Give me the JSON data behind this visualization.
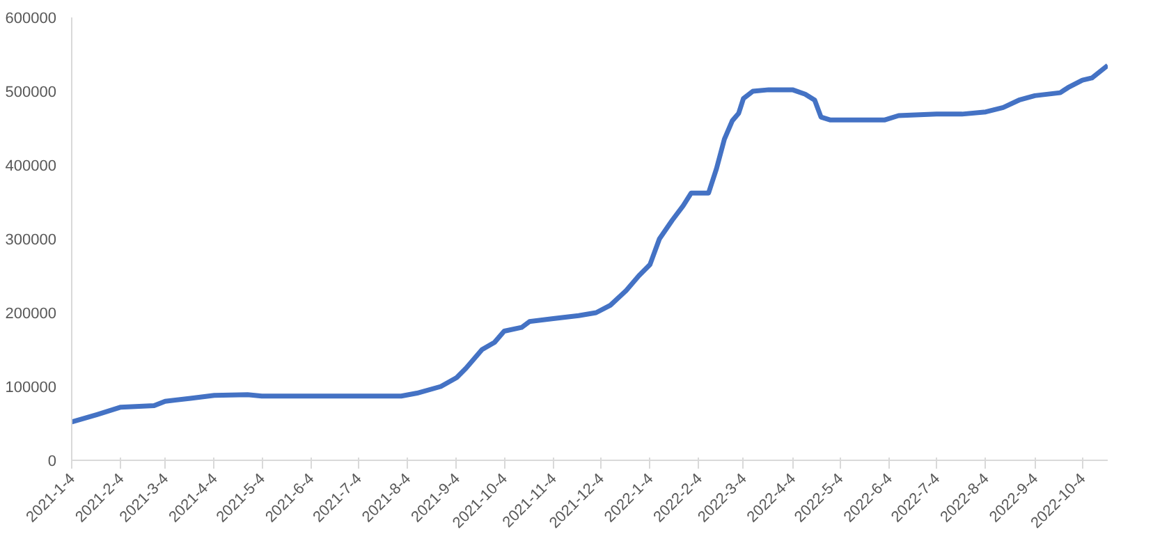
{
  "chart_data": {
    "type": "line",
    "grid": false,
    "marker": "none",
    "line_style": "solid",
    "x": [
      "2021-01-04",
      "2021-01-20",
      "2021-02-04",
      "2021-02-25",
      "2021-03-04",
      "2021-03-20",
      "2021-04-04",
      "2021-04-25",
      "2021-05-04",
      "2021-07-31",
      "2021-08-10",
      "2021-08-25",
      "2021-09-04",
      "2021-09-10",
      "2021-09-20",
      "2021-09-28",
      "2021-10-04",
      "2021-10-15",
      "2021-10-20",
      "2021-11-04",
      "2021-11-20",
      "2021-12-01",
      "2021-12-10",
      "2021-12-20",
      "2021-12-28",
      "2022-01-04",
      "2022-01-10",
      "2022-01-18",
      "2022-01-25",
      "2022-01-30",
      "2022-02-10",
      "2022-02-15",
      "2022-02-20",
      "2022-02-25",
      "2022-03-01",
      "2022-03-04",
      "2022-03-10",
      "2022-03-20",
      "2022-04-04",
      "2022-04-12",
      "2022-04-18",
      "2022-04-22",
      "2022-04-28",
      "2022-06-01",
      "2022-06-10",
      "2022-07-04",
      "2022-07-20",
      "2022-08-04",
      "2022-08-15",
      "2022-08-25",
      "2022-09-04",
      "2022-09-20",
      "2022-09-25",
      "2022-10-04",
      "2022-10-10",
      "2022-10-20"
    ],
    "series": [
      {
        "color": "#4472c4",
        "values": [
          52000,
          62000,
          72000,
          74000,
          80000,
          84000,
          88000,
          89000,
          87000,
          87000,
          91000,
          100000,
          112000,
          125000,
          150000,
          160000,
          175000,
          180000,
          188000,
          192000,
          196000,
          200000,
          210000,
          230000,
          250000,
          265000,
          300000,
          325000,
          345000,
          362000,
          362000,
          395000,
          435000,
          460000,
          470000,
          490000,
          500000,
          502000,
          502000,
          496000,
          488000,
          465000,
          461000,
          461000,
          467000,
          469000,
          469000,
          472000,
          478000,
          488000,
          494000,
          498000,
          505000,
          515000,
          518000,
          535000
        ]
      }
    ],
    "xlim": [
      "2021-01-04",
      "2022-10-20"
    ],
    "xticks": [
      {
        "value": "2021-01-04",
        "label": "2021-1-4"
      },
      {
        "value": "2021-02-04",
        "label": "2021-2-4"
      },
      {
        "value": "2021-03-04",
        "label": "2021-3-4"
      },
      {
        "value": "2021-04-04",
        "label": "2021-4-4"
      },
      {
        "value": "2021-05-04",
        "label": "2021-5-4"
      },
      {
        "value": "2021-06-04",
        "label": "2021-6-4"
      },
      {
        "value": "2021-07-04",
        "label": "2021-7-4"
      },
      {
        "value": "2021-08-04",
        "label": "2021-8-4"
      },
      {
        "value": "2021-09-04",
        "label": "2021-9-4"
      },
      {
        "value": "2021-10-04",
        "label": "2021-10-4"
      },
      {
        "value": "2021-11-04",
        "label": "2021-11-4"
      },
      {
        "value": "2021-12-04",
        "label": "2021-12-4"
      },
      {
        "value": "2022-01-04",
        "label": "2022-1-4"
      },
      {
        "value": "2022-02-04",
        "label": "2022-2-4"
      },
      {
        "value": "2022-03-04",
        "label": "2022-3-4"
      },
      {
        "value": "2022-04-04",
        "label": "2022-4-4"
      },
      {
        "value": "2022-05-04",
        "label": "2022-5-4"
      },
      {
        "value": "2022-06-04",
        "label": "2022-6-4"
      },
      {
        "value": "2022-07-04",
        "label": "2022-7-4"
      },
      {
        "value": "2022-08-04",
        "label": "2022-8-4"
      },
      {
        "value": "2022-09-04",
        "label": "2022-9-4"
      },
      {
        "value": "2022-10-04",
        "label": "2022-10-4"
      }
    ],
    "ylim": [
      0,
      600000
    ],
    "yticks": [
      0,
      100000,
      200000,
      300000,
      400000,
      500000,
      600000
    ]
  }
}
